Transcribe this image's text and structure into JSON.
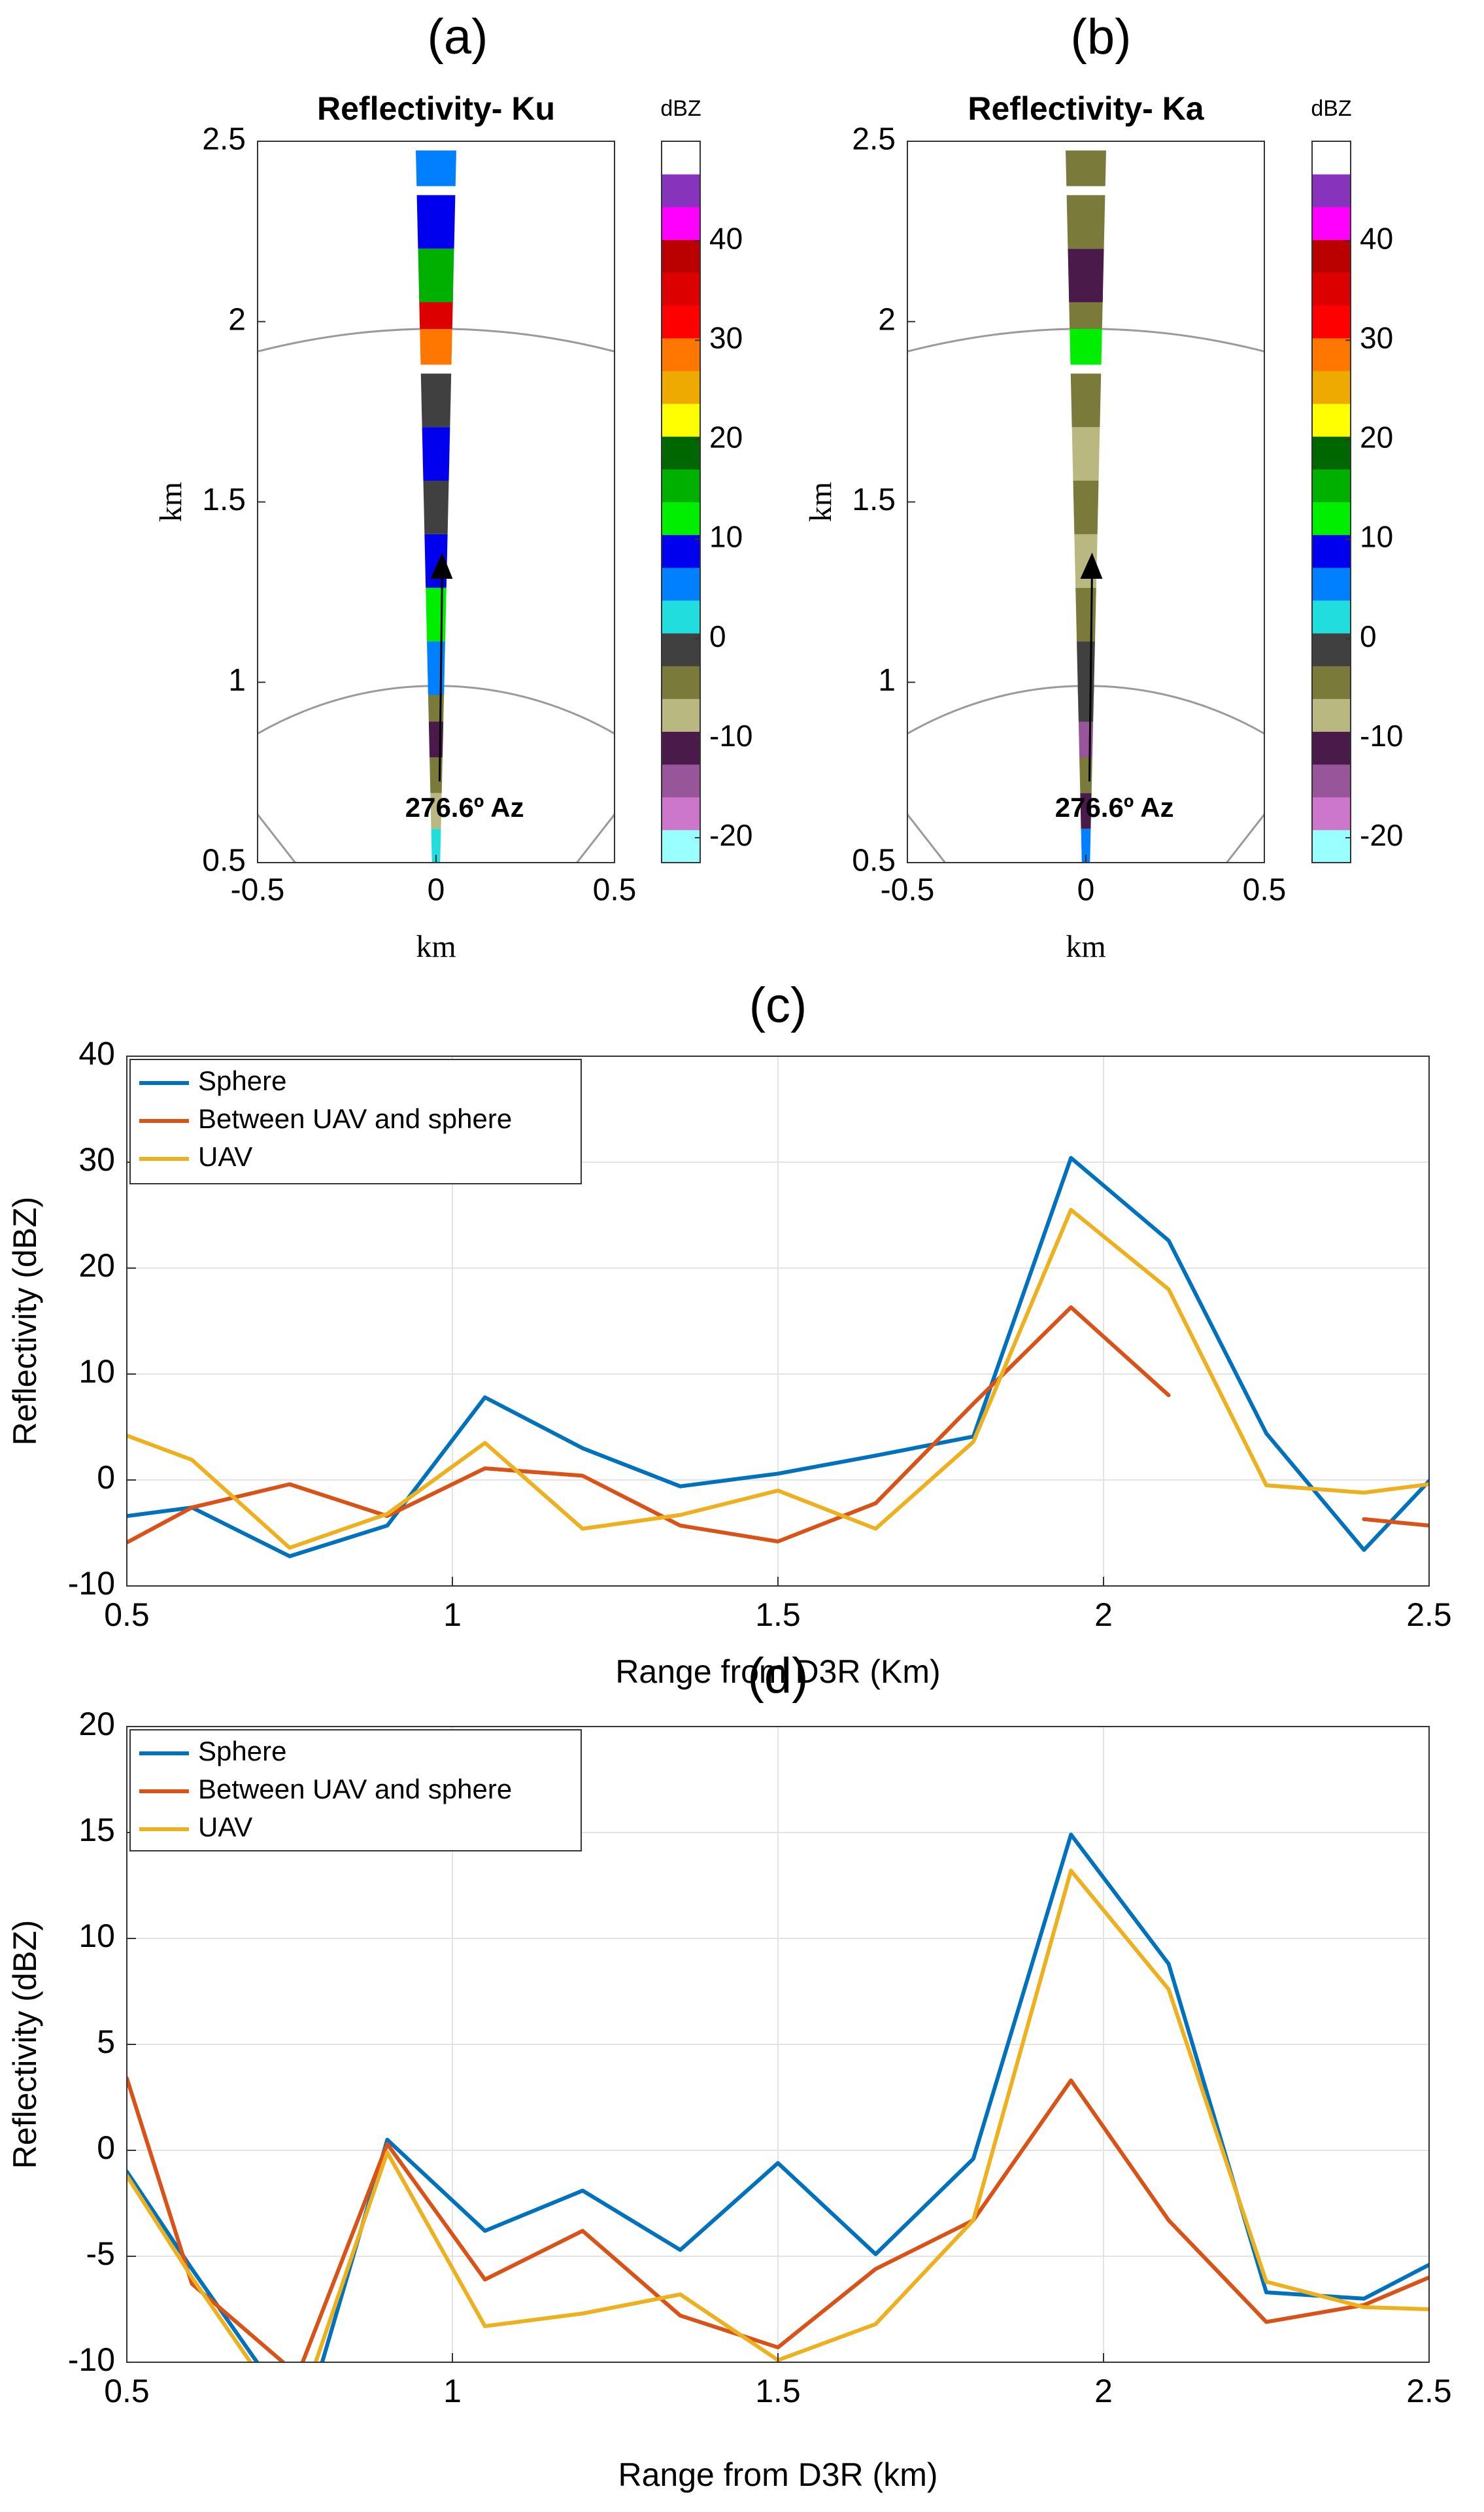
{
  "chart_data": [
    {
      "panel_label": "(a)",
      "type": "heatmap",
      "title": "Reflectivity- Ku",
      "xlabel": "km",
      "ylabel": "km",
      "xlim": [
        -0.5,
        0.5
      ],
      "ylim": [
        0.5,
        2.5
      ],
      "xticks": [
        "-0.5",
        "0",
        "0.5"
      ],
      "yticks": [
        "0.5",
        "1",
        "1.5",
        "2",
        "2.5"
      ],
      "range_rings_km": [
        1,
        2
      ],
      "annotation": "276.6º Az",
      "colorbar": {
        "label": "dBZ",
        "ticks": [
          "40",
          "30",
          "20",
          "10",
          "0",
          "-10",
          "-20"
        ],
        "range": [
          -22.5,
          50
        ],
        "colors": [
          "#99ffff",
          "#cc77cc",
          "#995599",
          "#4a1a4a",
          "#b8b880",
          "#7a7a3a",
          "#404040",
          "#22dddd",
          "#0080ff",
          "#0000ee",
          "#00ee00",
          "#00b000",
          "#006600",
          "#ffff00",
          "#eeaa00",
          "#ff7700",
          "#ff0000",
          "#dd0000",
          "#bb0000",
          "#ff00ff",
          "#8833bb",
          "#ffffff"
        ]
      },
      "gates": [
        {
          "range_km": 0.55,
          "dbz": 3
        },
        {
          "range_km": 0.65,
          "dbz": -8
        },
        {
          "range_km": 0.75,
          "dbz": -3
        },
        {
          "range_km": 0.85,
          "dbz": -10
        },
        {
          "range_km": 0.95,
          "dbz": -4
        },
        {
          "range_km": 1.05,
          "dbz": 6
        },
        {
          "range_km": 1.2,
          "dbz": 12
        },
        {
          "range_km": 1.35,
          "dbz": 10
        },
        {
          "range_km": 1.5,
          "dbz": -2
        },
        {
          "range_km": 1.65,
          "dbz": 8
        },
        {
          "range_km": 1.8,
          "dbz": -1
        },
        {
          "range_km": 1.95,
          "dbz": 28
        },
        {
          "range_km": 2.05,
          "dbz": 35
        },
        {
          "range_km": 2.15,
          "dbz": 14
        },
        {
          "range_km": 2.3,
          "dbz": 8
        },
        {
          "range_km": 2.45,
          "dbz": 5
        }
      ]
    },
    {
      "panel_label": "(b)",
      "type": "heatmap",
      "title": "Reflectivity- Ka",
      "xlabel": "km",
      "ylabel": "km",
      "xlim": [
        -0.5,
        0.5
      ],
      "ylim": [
        0.5,
        2.5
      ],
      "xticks": [
        "-0.5",
        "0",
        "0.5"
      ],
      "yticks": [
        "0.5",
        "1",
        "1.5",
        "2",
        "2.5"
      ],
      "range_rings_km": [
        1,
        2
      ],
      "annotation": "276.6º Az",
      "colorbar": {
        "label": "dBZ",
        "ticks": [
          "40",
          "30",
          "20",
          "10",
          "0",
          "-10",
          "-20"
        ],
        "range": [
          -22.5,
          50
        ],
        "colors": [
          "#99ffff",
          "#cc77cc",
          "#995599",
          "#4a1a4a",
          "#b8b880",
          "#7a7a3a",
          "#404040",
          "#22dddd",
          "#0080ff",
          "#0000ee",
          "#00ee00",
          "#00b000",
          "#006600",
          "#ffff00",
          "#eeaa00",
          "#ff7700",
          "#ff0000",
          "#dd0000",
          "#bb0000",
          "#ff00ff",
          "#8833bb",
          "#ffffff"
        ]
      },
      "gates": [
        {
          "range_km": 0.55,
          "dbz": 7
        },
        {
          "range_km": 0.65,
          "dbz": -12
        },
        {
          "range_km": 0.75,
          "dbz": -5
        },
        {
          "range_km": 0.85,
          "dbz": -14
        },
        {
          "range_km": 0.95,
          "dbz": 0
        },
        {
          "range_km": 1.05,
          "dbz": -2
        },
        {
          "range_km": 1.2,
          "dbz": -4
        },
        {
          "range_km": 1.35,
          "dbz": -7
        },
        {
          "range_km": 1.5,
          "dbz": -3
        },
        {
          "range_km": 1.65,
          "dbz": -9
        },
        {
          "range_km": 1.8,
          "dbz": -5
        },
        {
          "range_km": 1.95,
          "dbz": 12
        },
        {
          "range_km": 2.05,
          "dbz": -3
        },
        {
          "range_km": 2.15,
          "dbz": -12
        },
        {
          "range_km": 2.3,
          "dbz": -5
        },
        {
          "range_km": 2.45,
          "dbz": -4
        }
      ]
    },
    {
      "panel_label": "(c)",
      "type": "line",
      "xlabel": "Range from D3R (Km)",
      "ylabel": "Reflectivity (dBZ)",
      "xlim": [
        0.5,
        2.5
      ],
      "ylim": [
        -10,
        40
      ],
      "xticks": [
        "0.5",
        "1",
        "1.5",
        "2",
        "2.5"
      ],
      "yticks": [
        "-10",
        "0",
        "10",
        "20",
        "30",
        "40"
      ],
      "grid": true,
      "legend_position": "top-left",
      "series": [
        {
          "name": "Sphere",
          "color": "#0072bd",
          "x": [
            0.5,
            0.6,
            0.75,
            0.9,
            1.05,
            1.2,
            1.35,
            1.5,
            1.65,
            1.8,
            1.95,
            2.1,
            2.25,
            2.4,
            2.5
          ],
          "y": [
            -3.4,
            -2.6,
            -7.2,
            -4.3,
            7.8,
            3.0,
            -0.6,
            0.6,
            2.3,
            4.1,
            30.4,
            22.6,
            4.4,
            -6.6,
            -0.1
          ]
        },
        {
          "name": "Between UAV and sphere",
          "color": "#d95319",
          "x": [
            0.5,
            0.6,
            0.75,
            0.9,
            1.05,
            1.2,
            1.35,
            1.5,
            1.65,
            1.8,
            1.95,
            2.1,
            null,
            2.4,
            2.5
          ],
          "y": [
            -5.9,
            -2.6,
            -0.4,
            -3.4,
            1.1,
            0.4,
            -4.3,
            -5.8,
            -2.2,
            7.2,
            16.3,
            8.0,
            null,
            -3.7,
            -4.3
          ]
        },
        {
          "name": "UAV",
          "color": "#edb120",
          "x": [
            0.5,
            0.6,
            0.75,
            0.9,
            1.05,
            1.2,
            1.35,
            1.5,
            1.65,
            1.8,
            1.95,
            2.1,
            2.25,
            2.4,
            2.5
          ],
          "y": [
            4.2,
            1.9,
            -6.4,
            -3.2,
            3.5,
            -4.6,
            -3.3,
            -1.0,
            -4.6,
            3.6,
            25.5,
            18.0,
            -0.5,
            -1.2,
            -0.4
          ]
        }
      ]
    },
    {
      "panel_label": "(d)",
      "type": "line",
      "xlabel": "Range from D3R (km)",
      "ylabel": "Reflectivity (dBZ)",
      "xlim": [
        0.5,
        2.5
      ],
      "ylim": [
        -10,
        20
      ],
      "xticks": [
        "0.5",
        "1",
        "1.5",
        "2",
        "2.5"
      ],
      "yticks": [
        "-10",
        "-5",
        "0",
        "5",
        "10",
        "15",
        "20"
      ],
      "grid": true,
      "legend_position": "top-left",
      "series": [
        {
          "name": "Sphere",
          "color": "#0072bd",
          "x": [
            0.5,
            0.6,
            0.7,
            0.75,
            0.8,
            0.9,
            1.05,
            1.2,
            1.35,
            1.5,
            1.65,
            1.8,
            1.95,
            2.1,
            2.25,
            2.4,
            2.5
          ],
          "y": [
            -1.0,
            -5.6,
            -10.0,
            -11.5,
            -10.0,
            0.5,
            -3.8,
            -1.9,
            -4.7,
            -0.6,
            -4.9,
            -0.4,
            14.9,
            8.8,
            -6.7,
            -7.0,
            -5.4
          ]
        },
        {
          "name": "Between UAV and sphere",
          "color": "#d95319",
          "x": [
            0.5,
            0.6,
            0.74,
            0.75,
            0.77,
            0.9,
            1.05,
            1.2,
            1.35,
            1.5,
            1.65,
            1.8,
            1.95,
            2.1,
            2.25,
            2.4,
            2.5
          ],
          "y": [
            3.4,
            -6.3,
            -10.0,
            -10.5,
            -10.0,
            0.3,
            -6.1,
            -3.8,
            -7.8,
            -9.3,
            -5.6,
            -3.3,
            3.3,
            -3.3,
            -8.1,
            -7.3,
            -6.0
          ]
        },
        {
          "name": "UAV",
          "color": "#edb120",
          "x": [
            0.5,
            0.6,
            0.69,
            0.75,
            0.79,
            0.9,
            1.05,
            1.2,
            1.35,
            1.5,
            1.65,
            1.8,
            1.95,
            2.1,
            2.25,
            2.4,
            2.5
          ],
          "y": [
            -1.2,
            -6.0,
            -10.0,
            -11.5,
            -10.0,
            -0.1,
            -8.3,
            -7.7,
            -6.8,
            -9.9,
            -8.2,
            -3.3,
            13.2,
            7.6,
            -6.2,
            -7.4,
            -7.5
          ]
        }
      ]
    }
  ]
}
